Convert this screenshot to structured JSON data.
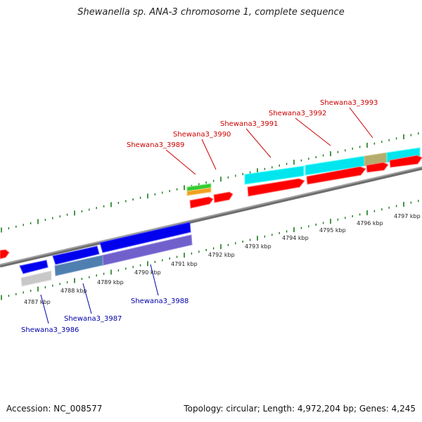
{
  "title": "Shewanella sp. ANA-3 chromosome 1, complete sequence",
  "footer": {
    "accession": "Accession: NC_008577",
    "topology": "Topology: circular; Length: 4,972,204 bp; Genes: 4,245"
  },
  "ruler": {
    "unit": "kbp",
    "labels": [
      "4787 kbp",
      "4788 kbp",
      "4789 kbp",
      "4790 kbp",
      "4791 kbp",
      "4792 kbp",
      "4793 kbp",
      "4794 kbp",
      "4795 kbp",
      "4796 kbp",
      "4797 kbp"
    ]
  },
  "colors": {
    "forward_label": "#cc0000",
    "reverse_label": "#0000aa",
    "backbone": "#808080",
    "tick": "#1a7a1a"
  },
  "labels": {
    "forward": [
      "Shewana3_3989",
      "Shewana3_3990",
      "Shewana3_3991",
      "Shewana3_3992",
      "Shewana3_3993"
    ],
    "reverse": [
      "Shewana3_3986",
      "Shewana3_3987",
      "Shewana3_3988"
    ]
  }
}
